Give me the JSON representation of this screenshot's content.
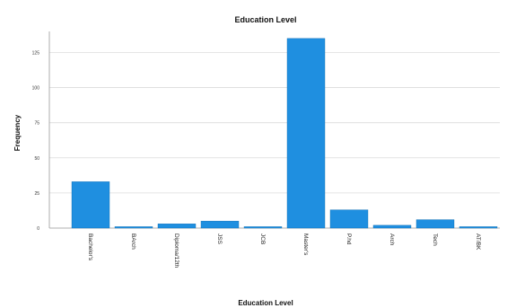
{
  "chart_data": {
    "type": "bar",
    "title": "Education Level",
    "xlabel": "Education Level",
    "ylabel": "Frequency",
    "categories": [
      "Bachelor's",
      "BArch",
      "Diploma/12th",
      "JSS",
      "JCB",
      "Master's",
      "P.hd",
      "Arch",
      "Tech",
      "AT/BK"
    ],
    "values": [
      33,
      1,
      3,
      5,
      1,
      135,
      13,
      2,
      6,
      1
    ],
    "ylim": [
      0,
      140
    ],
    "yticks": [
      0,
      25,
      50,
      75,
      100,
      125
    ],
    "grid": true,
    "colors": {
      "bar": "#1f8fe0",
      "bar_edge": "#0e6bb0",
      "grid": "#dcdcdc",
      "axis": "#999999"
    }
  }
}
